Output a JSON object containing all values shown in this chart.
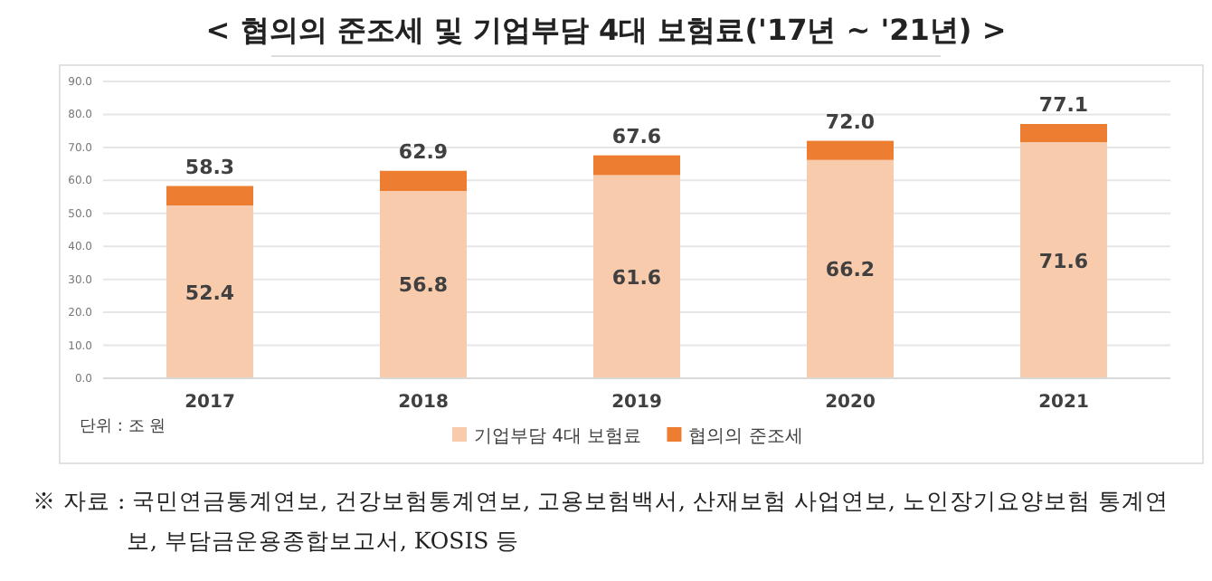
{
  "chart_data": {
    "type": "bar",
    "stacked": true,
    "title": "< 협의의 준조세 및 기업부담 4대 보험료('17년 ~ '21년) >",
    "categories": [
      "2017",
      "2018",
      "2019",
      "2020",
      "2021"
    ],
    "series": [
      {
        "name": "기업부담 4대 보험료",
        "color": "#f8cbad",
        "values": [
          52.4,
          56.8,
          61.6,
          66.2,
          71.6
        ],
        "value_labels": [
          "52.4",
          "56.8",
          "61.6",
          "66.2",
          "71.6"
        ]
      },
      {
        "name": "협의의 준조세",
        "color": "#ed7d31",
        "values": [
          5.9,
          6.1,
          6.0,
          5.8,
          5.5
        ]
      }
    ],
    "totals": [
      "58.3",
      "62.9",
      "67.6",
      "72.0",
      "77.1"
    ],
    "ylim": [
      0,
      90
    ],
    "yticks": [
      {
        "value": 0,
        "label": "0.0"
      },
      {
        "value": 10,
        "label": "10.0"
      },
      {
        "value": 20,
        "label": "20.0"
      },
      {
        "value": 30,
        "label": "30.0"
      },
      {
        "value": 40,
        "label": "40.0"
      },
      {
        "value": 50,
        "label": "50.0"
      },
      {
        "value": 60,
        "label": "60.0"
      },
      {
        "value": 70,
        "label": "70.0"
      },
      {
        "value": 80,
        "label": "80.0"
      },
      {
        "value": 90,
        "label": "90.0"
      }
    ],
    "grid": "y",
    "legend": "bottom",
    "annotations": [
      "단위 : 조 원",
      "※ 자료 : 국민연금통계연보, 건강보험통계연보, 고용보험백서, 산재보험 사업연보, 노인장기요양보험 통계연보, 부담금운용종합보고서, KOSIS 등"
    ]
  }
}
